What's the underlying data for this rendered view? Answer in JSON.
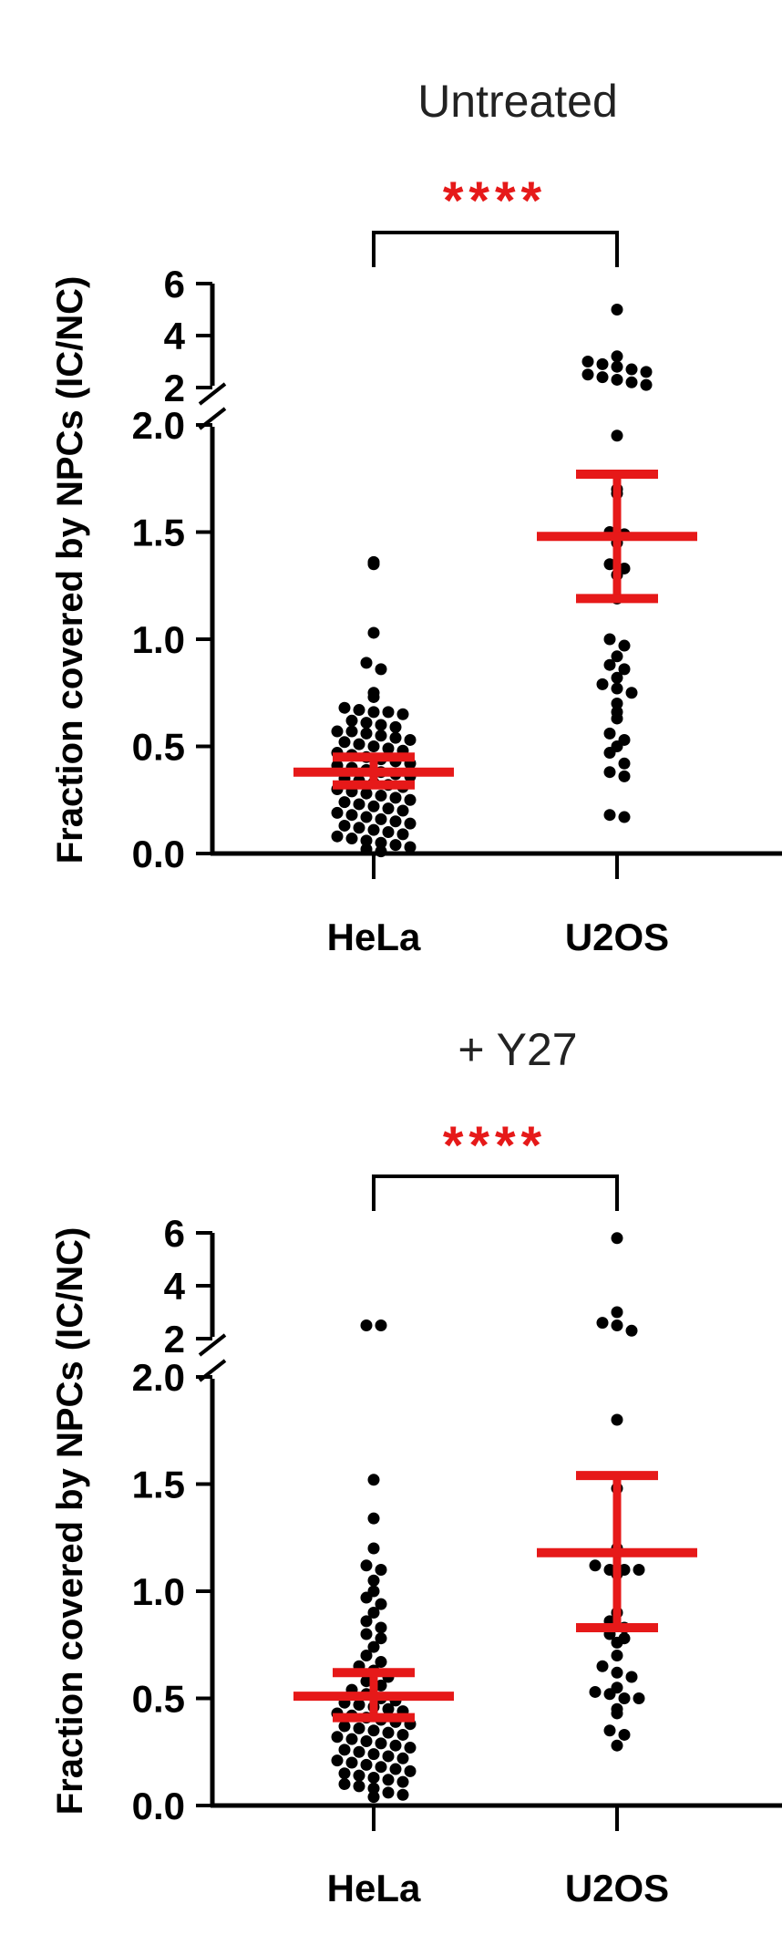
{
  "chart_data": [
    {
      "type": "scatter",
      "title": "Untreated",
      "ylabel": "Fraction covered by NPCs (IC/NC)",
      "categories": [
        "HeLa",
        "U2OS"
      ],
      "significance": "****",
      "y_axis": {
        "segments": [
          {
            "range": [
              0,
              2.0
            ],
            "ticks": [
              "0.0",
              "0.5",
              "1.0",
              "1.5",
              "2.0"
            ]
          },
          {
            "range": [
              2,
              6
            ],
            "ticks": [
              "2",
              "4",
              "6"
            ]
          }
        ]
      },
      "series": [
        {
          "category": "HeLa",
          "mean": 0.38,
          "ci_low": 0.32,
          "ci_high": 0.45,
          "values": [
            1.36,
            1.35,
            1.03,
            0.89,
            0.86,
            0.75,
            0.73,
            0.68,
            0.67,
            0.66,
            0.66,
            0.65,
            0.62,
            0.61,
            0.6,
            0.59,
            0.57,
            0.57,
            0.56,
            0.55,
            0.54,
            0.53,
            0.52,
            0.51,
            0.5,
            0.49,
            0.48,
            0.47,
            0.46,
            0.45,
            0.44,
            0.43,
            0.42,
            0.41,
            0.4,
            0.39,
            0.38,
            0.37,
            0.36,
            0.35,
            0.34,
            0.33,
            0.32,
            0.31,
            0.3,
            0.29,
            0.28,
            0.27,
            0.26,
            0.25,
            0.24,
            0.23,
            0.22,
            0.21,
            0.2,
            0.19,
            0.18,
            0.17,
            0.16,
            0.15,
            0.14,
            0.13,
            0.12,
            0.11,
            0.1,
            0.09,
            0.08,
            0.07,
            0.06,
            0.05,
            0.04,
            0.03,
            0.02,
            0.01
          ]
        },
        {
          "category": "U2OS",
          "mean": 1.48,
          "ci_low": 1.19,
          "ci_high": 1.77,
          "values": [
            5.0,
            3.2,
            3.0,
            2.9,
            2.8,
            2.7,
            2.6,
            2.5,
            2.4,
            2.3,
            2.2,
            2.1,
            1.95,
            1.7,
            1.68,
            1.5,
            1.49,
            1.45,
            1.35,
            1.33,
            1.3,
            1.19,
            1.0,
            0.97,
            0.92,
            0.88,
            0.86,
            0.82,
            0.79,
            0.77,
            0.75,
            0.7,
            0.66,
            0.63,
            0.56,
            0.53,
            0.5,
            0.47,
            0.42,
            0.38,
            0.36,
            0.18,
            0.17
          ]
        }
      ]
    },
    {
      "type": "scatter",
      "title": "+ Y27",
      "ylabel": "Fraction covered by NPCs (IC/NC)",
      "categories": [
        "HeLa",
        "U2OS"
      ],
      "significance": "****",
      "y_axis": {
        "segments": [
          {
            "range": [
              0,
              2.0
            ],
            "ticks": [
              "0.0",
              "0.5",
              "1.0",
              "1.5",
              "2.0"
            ]
          },
          {
            "range": [
              2,
              6
            ],
            "ticks": [
              "2",
              "4",
              "6"
            ]
          }
        ]
      },
      "series": [
        {
          "category": "HeLa",
          "mean": 0.51,
          "ci_low": 0.41,
          "ci_high": 0.62,
          "values": [
            2.5,
            2.5,
            1.52,
            1.34,
            1.2,
            1.12,
            1.1,
            1.05,
            1.0,
            0.97,
            0.94,
            0.9,
            0.86,
            0.83,
            0.8,
            0.78,
            0.74,
            0.7,
            0.67,
            0.65,
            0.63,
            0.6,
            0.58,
            0.56,
            0.54,
            0.52,
            0.5,
            0.49,
            0.48,
            0.47,
            0.46,
            0.45,
            0.44,
            0.43,
            0.42,
            0.41,
            0.4,
            0.39,
            0.38,
            0.37,
            0.36,
            0.35,
            0.34,
            0.33,
            0.32,
            0.31,
            0.3,
            0.29,
            0.28,
            0.27,
            0.26,
            0.25,
            0.24,
            0.23,
            0.22,
            0.21,
            0.2,
            0.19,
            0.18,
            0.17,
            0.16,
            0.15,
            0.14,
            0.13,
            0.12,
            0.11,
            0.1,
            0.09,
            0.08,
            0.06,
            0.05,
            0.04
          ]
        },
        {
          "category": "U2OS",
          "mean": 1.18,
          "ci_low": 0.83,
          "ci_high": 1.54,
          "values": [
            5.8,
            3.0,
            2.6,
            2.5,
            2.3,
            1.8,
            1.48,
            1.2,
            1.12,
            1.1,
            1.1,
            1.1,
            1.08,
            0.9,
            0.86,
            0.83,
            0.8,
            0.78,
            0.76,
            0.7,
            0.65,
            0.62,
            0.6,
            0.55,
            0.53,
            0.52,
            0.5,
            0.5,
            0.45,
            0.43,
            0.35,
            0.33,
            0.28
          ]
        }
      ]
    }
  ],
  "colors": {
    "points": "#000000",
    "mean_ci": "#e61919",
    "significance": "#e61919",
    "axes": "#000000"
  }
}
